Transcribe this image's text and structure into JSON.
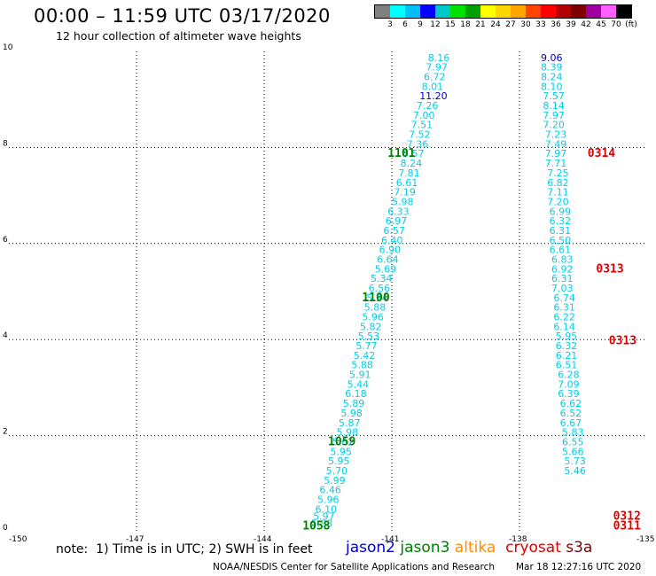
{
  "header": {
    "title": "00:00 – 11:59 UTC 03/17/2020",
    "subtitle": "12 hour collection of altimeter wave heights"
  },
  "colorbar": {
    "colors": [
      "#808080",
      "#00ffff",
      "#00bfff",
      "#0000ff",
      "#00c8c8",
      "#00e000",
      "#00a000",
      "#ffff00",
      "#ffd700",
      "#ffa500",
      "#ff4500",
      "#ff0000",
      "#b40000",
      "#800000",
      "#a000a0",
      "#ff60ff",
      "#000000"
    ],
    "labels": [
      "3",
      "6",
      "9",
      "12",
      "15",
      "18",
      "21",
      "24",
      "27",
      "30",
      "33",
      "36",
      "39",
      "42",
      "45",
      "70",
      "(ft)"
    ]
  },
  "chart_data": {
    "type": "scatter",
    "title": "12 hour collection of altimeter wave heights",
    "xlabel": "",
    "ylabel": "",
    "xlim": [
      -150,
      -135
    ],
    "ylim": [
      0,
      10
    ],
    "x_ticks": [
      "-150",
      "-147",
      "-144",
      "-141",
      "-138",
      "-135"
    ],
    "y_ticks": [
      "0",
      "2",
      "4",
      "6",
      "8",
      "10"
    ],
    "grid": true,
    "series": [
      {
        "name": "jason3",
        "color": "#00cfe8",
        "points": [
          {
            "x": -140.15,
            "y": 9.8,
            "v": "8.16"
          },
          {
            "x": -140.2,
            "y": 9.6,
            "v": "7.97"
          },
          {
            "x": -140.25,
            "y": 9.4,
            "v": "6.72"
          },
          {
            "x": -140.3,
            "y": 9.2,
            "v": "8.01"
          },
          {
            "x": -140.35,
            "y": 9.0,
            "v": "11.20",
            "color": "#0000cc"
          },
          {
            "x": -140.42,
            "y": 8.8,
            "v": "7.26"
          },
          {
            "x": -140.5,
            "y": 8.6,
            "v": "7.00"
          },
          {
            "x": -140.55,
            "y": 8.4,
            "v": "7.51"
          },
          {
            "x": -140.6,
            "y": 8.2,
            "v": "7.52"
          },
          {
            "x": -140.65,
            "y": 8.0,
            "v": "7.36"
          },
          {
            "x": -140.75,
            "y": 7.8,
            "v": "6.57"
          },
          {
            "x": -140.8,
            "y": 7.6,
            "v": "8.24"
          },
          {
            "x": -140.85,
            "y": 7.4,
            "v": "7.81"
          },
          {
            "x": -140.9,
            "y": 7.2,
            "v": "6.61"
          },
          {
            "x": -140.95,
            "y": 7.0,
            "v": "7.19"
          },
          {
            "x": -141.0,
            "y": 6.8,
            "v": "5.98"
          },
          {
            "x": -141.1,
            "y": 6.6,
            "v": "6.33"
          },
          {
            "x": -141.15,
            "y": 6.4,
            "v": "6.97"
          },
          {
            "x": -141.2,
            "y": 6.2,
            "v": "6.57"
          },
          {
            "x": -141.25,
            "y": 6.0,
            "v": "6.40"
          },
          {
            "x": -141.3,
            "y": 5.8,
            "v": "6.90"
          },
          {
            "x": -141.35,
            "y": 5.6,
            "v": "6.64"
          },
          {
            "x": -141.4,
            "y": 5.4,
            "v": "5.69"
          },
          {
            "x": -141.5,
            "y": 5.2,
            "v": "5.34"
          },
          {
            "x": -141.55,
            "y": 5.0,
            "v": "6.56"
          },
          {
            "x": -141.6,
            "y": 4.8,
            "v": "5.34"
          },
          {
            "x": -141.65,
            "y": 4.6,
            "v": "5.88"
          },
          {
            "x": -141.7,
            "y": 4.4,
            "v": "5.96"
          },
          {
            "x": -141.75,
            "y": 4.2,
            "v": "5.82"
          },
          {
            "x": -141.8,
            "y": 4.0,
            "v": "5.53"
          },
          {
            "x": -141.85,
            "y": 3.8,
            "v": "5.77"
          },
          {
            "x": -141.9,
            "y": 3.6,
            "v": "5.42"
          },
          {
            "x": -141.95,
            "y": 3.4,
            "v": "5.88"
          },
          {
            "x": -142.0,
            "y": 3.2,
            "v": "5.91"
          },
          {
            "x": -142.05,
            "y": 3.0,
            "v": "5.44"
          },
          {
            "x": -142.1,
            "y": 2.8,
            "v": "6.18"
          },
          {
            "x": -142.15,
            "y": 2.6,
            "v": "5.89"
          },
          {
            "x": -142.2,
            "y": 2.4,
            "v": "5.98"
          },
          {
            "x": -142.25,
            "y": 2.2,
            "v": "5.87"
          },
          {
            "x": -142.3,
            "y": 2.0,
            "v": "5.98"
          },
          {
            "x": -142.4,
            "y": 1.8,
            "v": "5.62"
          },
          {
            "x": -142.45,
            "y": 1.6,
            "v": "5.95"
          },
          {
            "x": -142.5,
            "y": 1.4,
            "v": "5.95"
          },
          {
            "x": -142.55,
            "y": 1.2,
            "v": "5.70"
          },
          {
            "x": -142.6,
            "y": 1.0,
            "v": "5.99"
          },
          {
            "x": -142.7,
            "y": 0.8,
            "v": "6.46"
          },
          {
            "x": -142.75,
            "y": 0.6,
            "v": "5.96"
          },
          {
            "x": -142.8,
            "y": 0.4,
            "v": "6.10"
          },
          {
            "x": -142.85,
            "y": 0.25,
            "v": "5.97"
          },
          {
            "x": -142.9,
            "y": 0.1,
            "v": "5.88"
          }
        ],
        "time_labels": [
          {
            "x": -141.1,
            "y": 7.8,
            "t": "1101"
          },
          {
            "x": -141.7,
            "y": 4.8,
            "t": "1100"
          },
          {
            "x": -142.5,
            "y": 1.8,
            "t": "1059"
          },
          {
            "x": -143.1,
            "y": 0.05,
            "t": "1058"
          }
        ]
      },
      {
        "name": "cryosat",
        "color": "#00cfe8",
        "points": [
          {
            "x": -137.5,
            "y": 9.8,
            "v": "9.06",
            "color": "#0000cc"
          },
          {
            "x": -137.5,
            "y": 9.6,
            "v": "8.39"
          },
          {
            "x": -137.5,
            "y": 9.4,
            "v": "8.24"
          },
          {
            "x": -137.5,
            "y": 9.2,
            "v": "8.10"
          },
          {
            "x": -137.45,
            "y": 9.0,
            "v": "7.57"
          },
          {
            "x": -137.45,
            "y": 8.8,
            "v": "8.14"
          },
          {
            "x": -137.45,
            "y": 8.6,
            "v": "7.97"
          },
          {
            "x": -137.45,
            "y": 8.4,
            "v": "7.20"
          },
          {
            "x": -137.4,
            "y": 8.2,
            "v": "7.23"
          },
          {
            "x": -137.4,
            "y": 8.0,
            "v": "7.49"
          },
          {
            "x": -137.4,
            "y": 7.8,
            "v": "7.97"
          },
          {
            "x": -137.4,
            "y": 7.6,
            "v": "7.71"
          },
          {
            "x": -137.35,
            "y": 7.4,
            "v": "7.25"
          },
          {
            "x": -137.35,
            "y": 7.2,
            "v": "6.82"
          },
          {
            "x": -137.35,
            "y": 7.0,
            "v": "7.11"
          },
          {
            "x": -137.35,
            "y": 6.8,
            "v": "7.20"
          },
          {
            "x": -137.3,
            "y": 6.6,
            "v": "6.99"
          },
          {
            "x": -137.3,
            "y": 6.4,
            "v": "6.32"
          },
          {
            "x": -137.3,
            "y": 6.2,
            "v": "6.31"
          },
          {
            "x": -137.3,
            "y": 6.0,
            "v": "6.50"
          },
          {
            "x": -137.3,
            "y": 5.8,
            "v": "6.61"
          },
          {
            "x": -137.25,
            "y": 5.6,
            "v": "6.83"
          },
          {
            "x": -137.25,
            "y": 5.4,
            "v": "6.92"
          },
          {
            "x": -137.25,
            "y": 5.2,
            "v": "6.31"
          },
          {
            "x": -137.25,
            "y": 5.0,
            "v": "7.03"
          },
          {
            "x": -137.2,
            "y": 4.8,
            "v": "6.74"
          },
          {
            "x": -137.2,
            "y": 4.6,
            "v": "6.31"
          },
          {
            "x": -137.2,
            "y": 4.4,
            "v": "6.22"
          },
          {
            "x": -137.2,
            "y": 4.2,
            "v": "6.14"
          },
          {
            "x": -137.15,
            "y": 4.0,
            "v": "5.95"
          },
          {
            "x": -137.15,
            "y": 3.8,
            "v": "6.32"
          },
          {
            "x": -137.15,
            "y": 3.6,
            "v": "6.21"
          },
          {
            "x": -137.15,
            "y": 3.4,
            "v": "6.51"
          },
          {
            "x": -137.1,
            "y": 3.2,
            "v": "6.28"
          },
          {
            "x": -137.1,
            "y": 3.0,
            "v": "7.09"
          },
          {
            "x": -137.1,
            "y": 2.8,
            "v": "6.39"
          },
          {
            "x": -137.05,
            "y": 2.6,
            "v": "6.62"
          },
          {
            "x": -137.05,
            "y": 2.4,
            "v": "6.52"
          },
          {
            "x": -137.05,
            "y": 2.2,
            "v": "6.67"
          },
          {
            "x": -137.0,
            "y": 2.0,
            "v": "5.83"
          },
          {
            "x": -137.0,
            "y": 1.8,
            "v": "6.55"
          },
          {
            "x": -137.0,
            "y": 1.6,
            "v": "5.66"
          },
          {
            "x": -136.95,
            "y": 1.4,
            "v": "5.73"
          },
          {
            "x": -136.95,
            "y": 1.2,
            "v": "5.46"
          }
        ],
        "time_labels": [
          {
            "x": -136.4,
            "y": 7.8,
            "t": "0314",
            "color": "#dd0000"
          },
          {
            "x": -136.2,
            "y": 5.4,
            "t": "0313",
            "color": "#dd0000"
          },
          {
            "x": -135.9,
            "y": 3.9,
            "t": "0313",
            "color": "#dd0000"
          },
          {
            "x": -135.8,
            "y": 0.25,
            "t": "0312",
            "color": "#dd0000"
          },
          {
            "x": -135.8,
            "y": 0.05,
            "t": "0311",
            "color": "#dd0000"
          }
        ]
      }
    ]
  },
  "note": "note:  1) Time is in UTC; 2) SWH is in feet",
  "legend": [
    {
      "label": "jason2",
      "color": "#0000cc"
    },
    {
      "label": " jason3",
      "color": "#008000"
    },
    {
      "label": " altika",
      "color": "#ff8c00"
    },
    {
      "label": "  cryosat",
      "color": "#dd0000"
    },
    {
      "label": " s3a",
      "color": "#800000"
    }
  ],
  "footer": {
    "credit": "NOAA/NESDIS Center for Satellite Applications and Research",
    "timestamp": "Mar 18 12:27:16 UTC 2020"
  }
}
